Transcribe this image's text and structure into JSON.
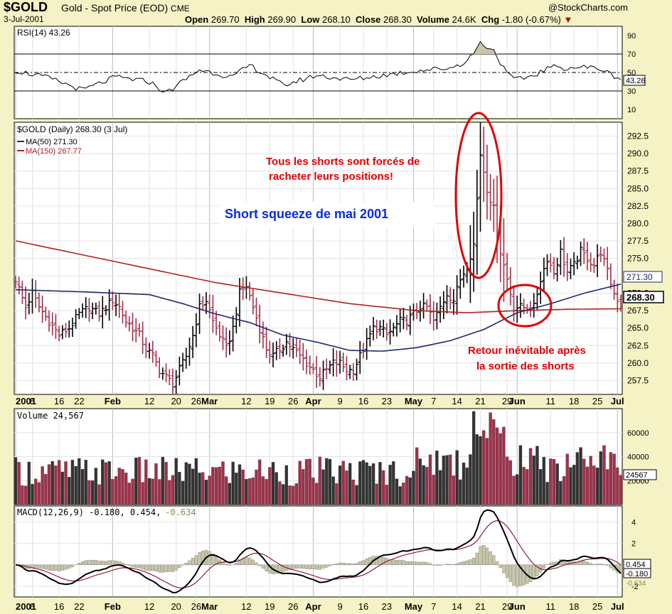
{
  "header": {
    "symbol": "$GOLD",
    "description": "Gold - Spot Price (EOD)",
    "exchange": "CME",
    "date": "3-Jul-2001",
    "open_label": "Open",
    "open": "269.70",
    "high_label": "High",
    "high": "269.90",
    "low_label": "Low",
    "low": "268.10",
    "close_label": "Close",
    "close": "268.30",
    "volume_label": "Volume",
    "volume": "24.6K",
    "chg_label": "Chg",
    "chg": "-1.80 (-0.67%)",
    "logo": "@StockCharts.com"
  },
  "colors": {
    "background": "#f5f3c5",
    "plot": "#ffffff",
    "price": "#000000",
    "ma50": "#1f2a6b",
    "ma150": "#b22222",
    "volume_up": "#333333",
    "volume_down": "#a0304a",
    "annotation_red": "#e00000",
    "annotation_blue": "#0a2be0"
  },
  "x_axis": {
    "labels": [
      {
        "day": 0,
        "text": "2001",
        "bold": true
      },
      {
        "day": 5,
        "text": "8"
      },
      {
        "day": 13,
        "text": "16"
      },
      {
        "day": 19,
        "text": "22"
      },
      {
        "day": 29,
        "text": "Feb",
        "bold": true
      },
      {
        "day": 40,
        "text": "12"
      },
      {
        "day": 48,
        "text": "20"
      },
      {
        "day": 54,
        "text": "26"
      },
      {
        "day": 58,
        "text": "Mar",
        "bold": true
      },
      {
        "day": 69,
        "text": "12"
      },
      {
        "day": 76,
        "text": "19"
      },
      {
        "day": 83,
        "text": "26"
      },
      {
        "day": 89,
        "text": "Apr",
        "bold": true
      },
      {
        "day": 97,
        "text": "9"
      },
      {
        "day": 104,
        "text": "16"
      },
      {
        "day": 111,
        "text": "23"
      },
      {
        "day": 119,
        "text": "May",
        "bold": true
      },
      {
        "day": 125,
        "text": "7"
      },
      {
        "day": 132,
        "text": "14"
      },
      {
        "day": 139,
        "text": "21"
      },
      {
        "day": 147,
        "text": "29"
      },
      {
        "day": 150,
        "text": "Jun",
        "bold": true
      },
      {
        "day": 160,
        "text": "11"
      },
      {
        "day": 167,
        "text": "18"
      },
      {
        "day": 174,
        "text": "25"
      },
      {
        "day": 180,
        "text": "Jul",
        "bold": true
      }
    ]
  },
  "rsi_panel": {
    "label": "RSI(14) 43.26",
    "value_box": "43.26",
    "ticks": [
      "90",
      "70",
      "50",
      "30",
      "10"
    ]
  },
  "price_panel": {
    "label": "$GOLD (Daily) 268.30 (3 Jul)",
    "ma50_label": "MA(50) 271.30",
    "ma150_label": "MA(150) 267.77",
    "ticks": [
      "292.5",
      "290.0",
      "287.5",
      "285.0",
      "282.5",
      "280.0",
      "277.5",
      "275.0",
      "272.5",
      "270.0",
      "267.5",
      "265.0",
      "262.5",
      "260.0",
      "257.5"
    ],
    "ma50_box": "271.30",
    "close_box": "268.30",
    "annotation_title": "Short squeeze de mai 2001",
    "annotation_top_line1": "Tous les shorts sont forcés de",
    "annotation_top_line2": "racheter leurs positions!",
    "annotation_bottom_line1": "Retour inévitable après",
    "annotation_bottom_line2": "la sortie des shorts"
  },
  "volume_panel": {
    "label": "Volume 24,567",
    "value_box": "24567",
    "ticks": [
      "60000",
      "40000",
      "20000"
    ]
  },
  "macd_panel": {
    "label": "MACD(12,26,9) -0.180, 0.454, -0.634",
    "label_main": "MACD(12,26,9) -0.180, 0.454,",
    "label_hist": "-0.634",
    "box_signal": "0.454",
    "box_macd": "-0.180",
    "box_hist": "-0.634",
    "ticks": [
      "4",
      "2",
      "0",
      "-2"
    ]
  },
  "chart_data": {
    "type": "line",
    "title": "$GOLD Gold - Spot Price (EOD)",
    "x_unit": "trading days from 2 Jan 2001 to 3 Jul 2001",
    "price_ylim": [
      255.5,
      294.5
    ],
    "series": [
      {
        "name": "$GOLD (Daily) close",
        "points": [
          [
            0,
            272
          ],
          [
            3,
            268
          ],
          [
            5,
            270
          ],
          [
            7,
            268
          ],
          [
            10,
            266
          ],
          [
            13,
            264
          ],
          [
            16,
            265
          ],
          [
            19,
            267
          ],
          [
            22,
            268
          ],
          [
            25,
            267
          ],
          [
            27,
            268
          ],
          [
            29,
            269
          ],
          [
            31,
            268
          ],
          [
            33,
            266
          ],
          [
            35,
            265
          ],
          [
            37,
            264
          ],
          [
            39,
            262
          ],
          [
            41,
            261
          ],
          [
            43,
            259
          ],
          [
            45,
            258
          ],
          [
            47,
            257
          ],
          [
            49,
            259
          ],
          [
            51,
            261
          ],
          [
            53,
            264
          ],
          [
            55,
            268
          ],
          [
            57,
            269
          ],
          [
            59,
            266
          ],
          [
            61,
            264
          ],
          [
            63,
            262
          ],
          [
            65,
            265
          ],
          [
            67,
            270
          ],
          [
            69,
            271
          ],
          [
            71,
            268
          ],
          [
            73,
            265
          ],
          [
            75,
            262
          ],
          [
            77,
            261
          ],
          [
            79,
            262
          ],
          [
            81,
            263
          ],
          [
            83,
            262
          ],
          [
            85,
            261
          ],
          [
            87,
            260
          ],
          [
            89,
            259
          ],
          [
            91,
            258
          ],
          [
            93,
            259
          ],
          [
            95,
            260
          ],
          [
            97,
            260
          ],
          [
            99,
            259
          ],
          [
            101,
            259
          ],
          [
            103,
            261
          ],
          [
            105,
            263
          ],
          [
            107,
            265
          ],
          [
            109,
            265
          ],
          [
            111,
            264
          ],
          [
            113,
            265
          ],
          [
            115,
            266
          ],
          [
            117,
            266
          ],
          [
            119,
            267
          ],
          [
            121,
            268
          ],
          [
            123,
            268
          ],
          [
            125,
            266
          ],
          [
            127,
            268
          ],
          [
            129,
            270
          ],
          [
            131,
            269
          ],
          [
            133,
            272
          ],
          [
            135,
            274
          ],
          [
            137,
            277
          ],
          [
            139,
            290
          ],
          [
            141,
            285
          ],
          [
            143,
            282
          ],
          [
            145,
            276
          ],
          [
            147,
            272
          ],
          [
            149,
            268
          ],
          [
            151,
            268
          ],
          [
            153,
            268
          ],
          [
            155,
            268
          ],
          [
            157,
            272
          ],
          [
            159,
            275
          ],
          [
            161,
            273
          ],
          [
            163,
            276
          ],
          [
            165,
            273
          ],
          [
            167,
            274
          ],
          [
            169,
            276
          ],
          [
            171,
            275
          ],
          [
            173,
            274
          ],
          [
            175,
            276
          ],
          [
            177,
            273
          ],
          [
            179,
            270
          ],
          [
            181,
            268.3
          ]
        ]
      },
      {
        "name": "MA(50)",
        "points": [
          [
            0,
            270.5
          ],
          [
            20,
            270.2
          ],
          [
            40,
            269.8
          ],
          [
            50,
            268.5
          ],
          [
            60,
            267
          ],
          [
            70,
            265.8
          ],
          [
            80,
            264
          ],
          [
            90,
            263
          ],
          [
            100,
            261.8
          ],
          [
            110,
            261.7
          ],
          [
            120,
            262.2
          ],
          [
            130,
            263.2
          ],
          [
            140,
            264.8
          ],
          [
            150,
            267.2
          ],
          [
            160,
            268.5
          ],
          [
            170,
            270
          ],
          [
            181,
            271.3
          ]
        ]
      },
      {
        "name": "MA(150)",
        "points": [
          [
            0,
            277.5
          ],
          [
            20,
            275.5
          ],
          [
            40,
            273.5
          ],
          [
            60,
            271.5
          ],
          [
            80,
            270
          ],
          [
            100,
            268.5
          ],
          [
            120,
            267.5
          ],
          [
            135,
            267.2
          ],
          [
            150,
            267.5
          ],
          [
            165,
            267.7
          ],
          [
            181,
            267.77
          ]
        ]
      }
    ],
    "rsi": {
      "ylim": [
        0,
        100
      ],
      "series": [
        [
          0,
          52
        ],
        [
          10,
          44
        ],
        [
          20,
          31
        ],
        [
          30,
          45
        ],
        [
          40,
          40
        ],
        [
          45,
          28
        ],
        [
          55,
          53
        ],
        [
          65,
          45
        ],
        [
          70,
          58
        ],
        [
          80,
          36
        ],
        [
          90,
          47
        ],
        [
          100,
          42
        ],
        [
          110,
          47
        ],
        [
          120,
          52
        ],
        [
          130,
          55
        ],
        [
          135,
          62
        ],
        [
          139,
          82
        ],
        [
          143,
          74
        ],
        [
          147,
          48
        ],
        [
          150,
          42
        ],
        [
          155,
          47
        ],
        [
          160,
          56
        ],
        [
          165,
          55
        ],
        [
          170,
          56
        ],
        [
          175,
          54
        ],
        [
          178,
          48
        ],
        [
          181,
          43.26
        ]
      ]
    },
    "volume": {
      "ylim": [
        0,
        80000
      ],
      "last": 24567
    },
    "macd": {
      "ylim": [
        -3,
        5.5
      ],
      "last_macd": -0.18,
      "last_signal": 0.454,
      "last_hist": -0.634
    }
  }
}
